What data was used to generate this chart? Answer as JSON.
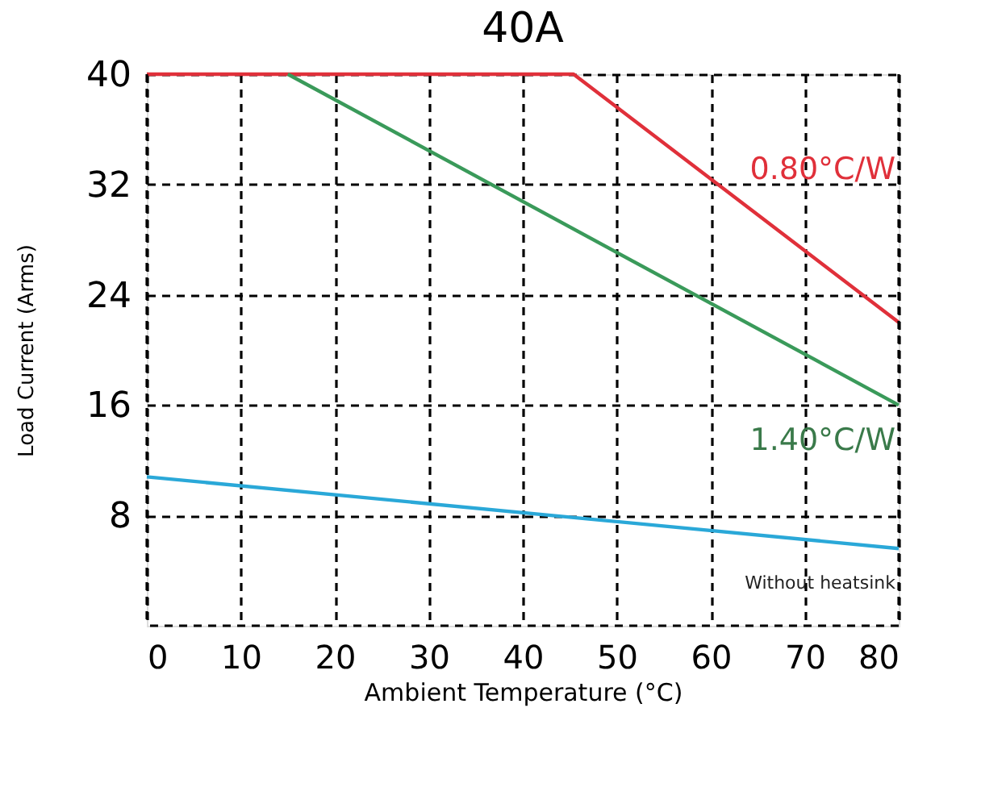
{
  "chart_data": {
    "type": "line",
    "title": "40A",
    "xlabel": "Ambient Temperature (°C)",
    "ylabel": "Load Current (Arms)",
    "series": [
      {
        "name": "0.80°C/W",
        "color": "#e0303a",
        "x": [
          0,
          45.4,
          80
        ],
        "values": [
          40,
          40,
          22
        ]
      },
      {
        "name": "1.40°C/W",
        "color": "#3a9a5a",
        "x": [
          15,
          80
        ],
        "values": [
          40,
          16
        ]
      },
      {
        "name": "Without heatsink",
        "color": "#2aa8d8",
        "x": [
          0,
          80
        ],
        "values": [
          10.8,
          5.6
        ]
      }
    ],
    "xlim": [
      0,
      80
    ],
    "ylim": [
      0,
      40
    ],
    "xticks": [
      0,
      10,
      20,
      30,
      40,
      50,
      60,
      70,
      80
    ],
    "yticks": [
      8,
      16,
      24,
      32,
      40
    ],
    "grid": true,
    "line_style": "solid",
    "marker": "none",
    "legend": false
  }
}
